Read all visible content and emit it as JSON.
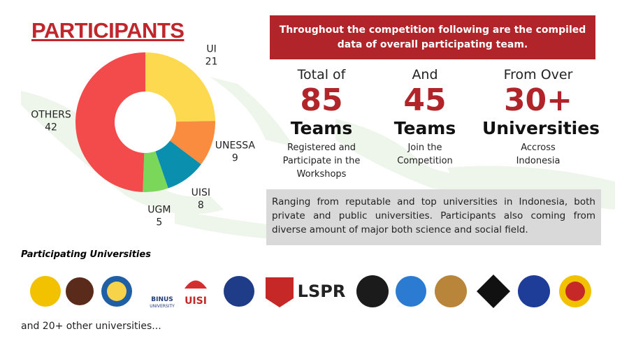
{
  "chart_data": {
    "type": "pie",
    "title": "PARTICIPANTS",
    "categories": [
      "UI",
      "UNESSA",
      "UISI",
      "UGM",
      "OTHERS"
    ],
    "values": [
      21,
      9,
      8,
      5,
      42
    ],
    "colors": [
      "#fcd94e",
      "#f98c3e",
      "#0a8fae",
      "#7bd75a",
      "#f34b4b"
    ],
    "donut": true
  },
  "info": {
    "banner": [
      "Throughout the competition following are the compiled",
      "data of overall participating team."
    ],
    "stats": [
      {
        "lead": "Total of",
        "number": 85,
        "unit": "Teams",
        "desc": [
          "Registered and",
          "Participate in the",
          "Workshops"
        ]
      },
      {
        "lead": "And",
        "number": 45,
        "unit": "Teams",
        "desc": [
          "Join the",
          "Competition"
        ]
      },
      {
        "lead": "From Over",
        "number": "30+",
        "unit": "Universities",
        "desc": [
          "Accross",
          "Indonesia"
        ]
      }
    ],
    "note": "Ranging from reputable and top universities in Indonesia, both private and public universities. Participants also coming from diverse amount of major both science and social field.",
    "logos_title": "Participating Universities",
    "logo_texts": [
      "BINUS",
      "UNIVERSITY",
      "UISI",
      "LSPR"
    ],
    "footer": "and 20+ other universities..."
  }
}
